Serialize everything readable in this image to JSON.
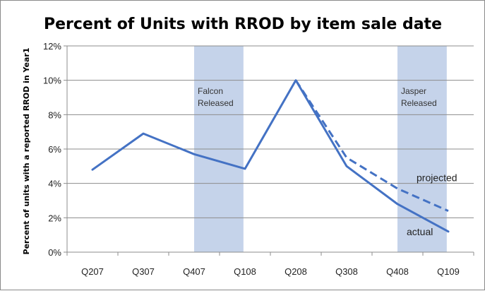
{
  "chart_data": {
    "type": "line",
    "title": "Percent of Units with RROD by item sale date",
    "xlabel": "",
    "ylabel": "Percent of units with a reported RROD in Year1",
    "categories": [
      "Q207",
      "Q307",
      "Q407",
      "Q108",
      "Q208",
      "Q308",
      "Q408",
      "Q109"
    ],
    "ylim": [
      0,
      12
    ],
    "yticks": [
      "0%",
      "2%",
      "4%",
      "6%",
      "8%",
      "10%",
      "12%"
    ],
    "grid": "horizontal",
    "series": [
      {
        "name": "actual",
        "style": "solid",
        "color": "#4472C4",
        "values": [
          4.8,
          6.9,
          5.7,
          4.85,
          10.0,
          5.0,
          2.8,
          1.2
        ]
      },
      {
        "name": "projected",
        "style": "dashed",
        "color": "#4472C4",
        "values": [
          null,
          null,
          null,
          null,
          10.0,
          5.5,
          3.7,
          2.4
        ]
      }
    ],
    "bands": [
      {
        "label_line1": "Falcon",
        "label_line2": "Released",
        "from": "Q407",
        "color": "#C5D3EA"
      },
      {
        "label_line1": "Jasper",
        "label_line2": "Released",
        "from": "Q408",
        "color": "#C5D3EA"
      }
    ]
  }
}
